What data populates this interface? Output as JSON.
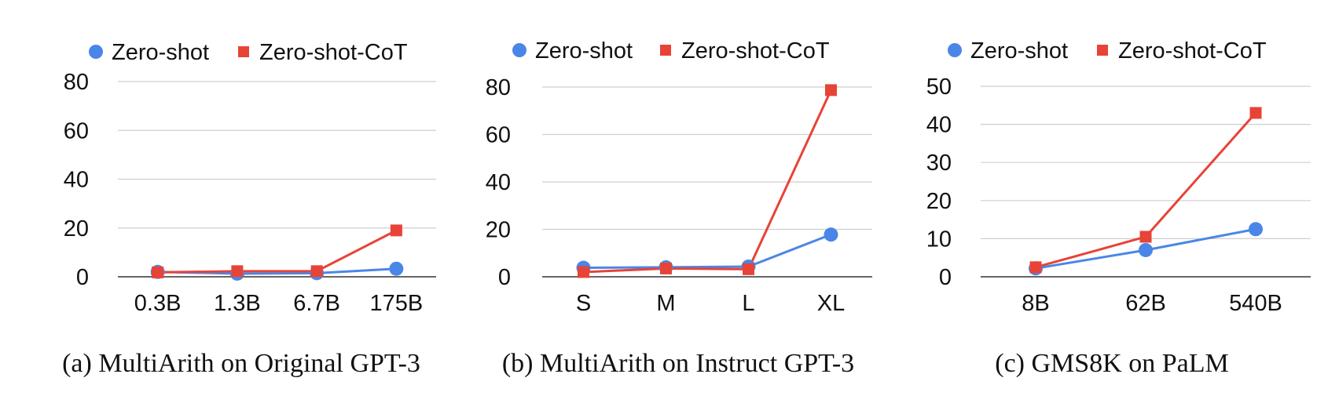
{
  "chart_data": [
    {
      "type": "line",
      "caption": "(a) MultiArith on Original GPT-3",
      "categories": [
        "0.3B",
        "1.3B",
        "6.7B",
        "175B"
      ],
      "yticks": [
        0,
        20,
        40,
        60,
        80
      ],
      "ylim": [
        0,
        80
      ],
      "legend_position": "top",
      "series": [
        {
          "name": "Zero-shot",
          "values": [
            2.0,
            1.3,
            1.5,
            3.3
          ],
          "color": "#4a86e8",
          "marker": "circle"
        },
        {
          "name": "Zero-shot-CoT",
          "values": [
            1.8,
            2.3,
            2.3,
            19.0
          ],
          "color": "#e84337",
          "marker": "square"
        }
      ]
    },
    {
      "type": "line",
      "caption": "(b) MultiArith on Instruct GPT-3",
      "categories": [
        "S",
        "M",
        "L",
        "XL"
      ],
      "yticks": [
        0,
        20,
        40,
        60,
        80
      ],
      "ylim": [
        0,
        80
      ],
      "legend_position": "top",
      "series": [
        {
          "name": "Zero-shot",
          "values": [
            3.8,
            4.0,
            4.3,
            17.8
          ],
          "color": "#4a86e8",
          "marker": "circle"
        },
        {
          "name": "Zero-shot-CoT",
          "values": [
            2.0,
            3.5,
            3.2,
            78.7
          ],
          "color": "#e84337",
          "marker": "square"
        }
      ]
    },
    {
      "type": "line",
      "caption": "(c) GMS8K on PaLM",
      "categories": [
        "8B",
        "62B",
        "540B"
      ],
      "yticks": [
        0,
        10,
        20,
        30,
        40,
        50
      ],
      "ylim": [
        0,
        50
      ],
      "legend_position": "top",
      "series": [
        {
          "name": "Zero-shot",
          "values": [
            2.2,
            7.0,
            12.5
          ],
          "color": "#4a86e8",
          "marker": "circle"
        },
        {
          "name": "Zero-shot-CoT",
          "values": [
            2.5,
            10.5,
            43.0
          ],
          "color": "#e84337",
          "marker": "square"
        }
      ]
    }
  ]
}
